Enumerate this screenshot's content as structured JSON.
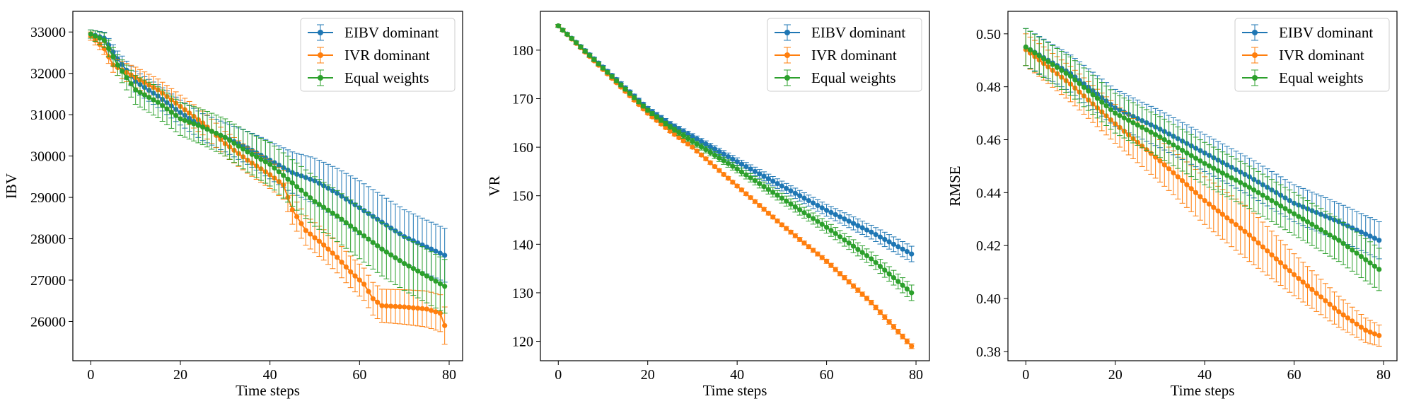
{
  "figure": {
    "background": "#ffffff"
  },
  "colors": {
    "EIBV dominant": "#1f77b4",
    "IVR dominant": "#ff7f0e",
    "Equal weights": "#2ca02c"
  },
  "legend": {
    "position": "top-right",
    "entries": [
      "EIBV dominant",
      "IVR dominant",
      "Equal weights"
    ]
  },
  "chart_data": [
    {
      "type": "line",
      "xlabel": "Time steps",
      "ylabel": "IBV",
      "xlim": [
        -4,
        83
      ],
      "ylim": [
        25050,
        33500
      ],
      "xticks": [
        0,
        20,
        40,
        60,
        80
      ],
      "yticks": [
        26000,
        27000,
        28000,
        29000,
        30000,
        31000,
        32000,
        33000
      ],
      "ytick_labels": [
        "26000",
        "27000",
        "28000",
        "29000",
        "30000",
        "31000",
        "32000",
        "33000"
      ],
      "grid": false,
      "series": [
        {
          "name": "EIBV dominant",
          "keypoints": [
            [
              0,
              32950
            ],
            [
              3,
              32850
            ],
            [
              6,
              32350
            ],
            [
              10,
              31800
            ],
            [
              15,
              31450
            ],
            [
              20,
              31050
            ],
            [
              25,
              30700
            ],
            [
              30,
              30450
            ],
            [
              35,
              30200
            ],
            [
              40,
              29900
            ],
            [
              45,
              29600
            ],
            [
              50,
              29400
            ],
            [
              55,
              29100
            ],
            [
              60,
              28750
            ],
            [
              65,
              28400
            ],
            [
              70,
              28050
            ],
            [
              75,
              27800
            ],
            [
              79,
              27600
            ]
          ],
          "err_keypoints": [
            [
              0,
              100
            ],
            [
              10,
              250
            ],
            [
              30,
              350
            ],
            [
              50,
              550
            ],
            [
              60,
              650
            ],
            [
              79,
              650
            ]
          ]
        },
        {
          "name": "IVR dominant",
          "keypoints": [
            [
              0,
              32900
            ],
            [
              3,
              32600
            ],
            [
              5,
              32200
            ],
            [
              10,
              31900
            ],
            [
              15,
              31600
            ],
            [
              20,
              31200
            ],
            [
              25,
              30800
            ],
            [
              30,
              30300
            ],
            [
              35,
              29900
            ],
            [
              40,
              29550
            ],
            [
              43,
              29300
            ],
            [
              45,
              28700
            ],
            [
              48,
              28200
            ],
            [
              52,
              27850
            ],
            [
              55,
              27550
            ],
            [
              58,
              27200
            ],
            [
              61,
              26900
            ],
            [
              63,
              26550
            ],
            [
              65,
              26380
            ],
            [
              70,
              26350
            ],
            [
              75,
              26300
            ],
            [
              78,
              26200
            ],
            [
              79,
              25900
            ]
          ],
          "err_keypoints": [
            [
              0,
              100
            ],
            [
              10,
              250
            ],
            [
              30,
              300
            ],
            [
              45,
              350
            ],
            [
              65,
              400
            ],
            [
              79,
              450
            ]
          ]
        },
        {
          "name": "Equal weights",
          "keypoints": [
            [
              0,
              32950
            ],
            [
              3,
              32800
            ],
            [
              6,
              32200
            ],
            [
              10,
              31600
            ],
            [
              15,
              31300
            ],
            [
              20,
              30900
            ],
            [
              25,
              30700
            ],
            [
              30,
              30450
            ],
            [
              35,
              30100
            ],
            [
              40,
              29800
            ],
            [
              45,
              29350
            ],
            [
              50,
              28900
            ],
            [
              55,
              28550
            ],
            [
              60,
              28150
            ],
            [
              65,
              27750
            ],
            [
              70,
              27400
            ],
            [
              75,
              27100
            ],
            [
              79,
              26850
            ]
          ],
          "err_keypoints": [
            [
              0,
              100
            ],
            [
              10,
              350
            ],
            [
              30,
              450
            ],
            [
              50,
              600
            ],
            [
              65,
              650
            ],
            [
              79,
              650
            ]
          ]
        }
      ]
    },
    {
      "type": "line",
      "xlabel": "Time steps",
      "ylabel": "VR",
      "xlim": [
        -4,
        83
      ],
      "ylim": [
        116,
        188
      ],
      "xticks": [
        0,
        20,
        40,
        60,
        80
      ],
      "yticks": [
        120,
        130,
        140,
        150,
        160,
        170,
        180
      ],
      "ytick_labels": [
        "120",
        "130",
        "140",
        "150",
        "160",
        "170",
        "180"
      ],
      "grid": false,
      "series": [
        {
          "name": "EIBV dominant",
          "keypoints": [
            [
              0,
              185
            ],
            [
              10,
              176.5
            ],
            [
              20,
              168
            ],
            [
              25,
              164.8
            ],
            [
              30,
              162.2
            ],
            [
              40,
              157
            ],
            [
              50,
              152
            ],
            [
              60,
              147
            ],
            [
              70,
              142.5
            ],
            [
              79,
              138
            ]
          ],
          "err_keypoints": [
            [
              0,
              0.3
            ],
            [
              20,
              0.4
            ],
            [
              79,
              1.6
            ]
          ]
        },
        {
          "name": "IVR dominant",
          "keypoints": [
            [
              0,
              185
            ],
            [
              10,
              176
            ],
            [
              20,
              167
            ],
            [
              25,
              163.3
            ],
            [
              30,
              160
            ],
            [
              40,
              152
            ],
            [
              50,
              144
            ],
            [
              60,
              136.5
            ],
            [
              70,
              128
            ],
            [
              79,
              119
            ]
          ],
          "err_keypoints": [
            [
              0,
              0.2
            ],
            [
              79,
              0.5
            ]
          ]
        },
        {
          "name": "Equal weights",
          "keypoints": [
            [
              0,
              185
            ],
            [
              10,
              176.3
            ],
            [
              20,
              167.6
            ],
            [
              25,
              164.2
            ],
            [
              30,
              161.2
            ],
            [
              40,
              155.5
            ],
            [
              50,
              149.5
            ],
            [
              60,
              143.5
            ],
            [
              70,
              137
            ],
            [
              79,
              130
            ]
          ],
          "err_keypoints": [
            [
              0,
              0.3
            ],
            [
              20,
              0.4
            ],
            [
              79,
              1.6
            ]
          ]
        }
      ]
    },
    {
      "type": "line",
      "xlabel": "Time steps",
      "ylabel": "RMSE",
      "xlim": [
        -4,
        83
      ],
      "ylim": [
        0.3765,
        0.5085
      ],
      "xticks": [
        0,
        20,
        40,
        60,
        80
      ],
      "yticks": [
        0.38,
        0.4,
        0.42,
        0.44,
        0.46,
        0.48,
        0.5
      ],
      "ytick_labels": [
        "0.38",
        "0.40",
        "0.42",
        "0.44",
        "0.46",
        "0.48",
        "0.50"
      ],
      "grid": false,
      "series": [
        {
          "name": "EIBV dominant",
          "keypoints": [
            [
              0,
              0.495
            ],
            [
              10,
              0.485
            ],
            [
              20,
              0.472
            ],
            [
              30,
              0.464
            ],
            [
              40,
              0.455
            ],
            [
              50,
              0.446
            ],
            [
              60,
              0.436
            ],
            [
              70,
              0.429
            ],
            [
              79,
              0.422
            ]
          ],
          "err_keypoints": [
            [
              0,
              0.007
            ],
            [
              40,
              0.007
            ],
            [
              79,
              0.007
            ]
          ]
        },
        {
          "name": "IVR dominant",
          "keypoints": [
            [
              0,
              0.494
            ],
            [
              10,
              0.481
            ],
            [
              20,
              0.466
            ],
            [
              30,
              0.452
            ],
            [
              40,
              0.437
            ],
            [
              50,
              0.424
            ],
            [
              60,
              0.409
            ],
            [
              70,
              0.395
            ],
            [
              76,
              0.388
            ],
            [
              79,
              0.386
            ]
          ],
          "err_keypoints": [
            [
              0,
              0.006
            ],
            [
              30,
              0.008
            ],
            [
              50,
              0.01
            ],
            [
              79,
              0.004
            ]
          ]
        },
        {
          "name": "Equal weights",
          "keypoints": [
            [
              0,
              0.495
            ],
            [
              10,
              0.484
            ],
            [
              20,
              0.47
            ],
            [
              30,
              0.461
            ],
            [
              40,
              0.451
            ],
            [
              50,
              0.442
            ],
            [
              60,
              0.432
            ],
            [
              70,
              0.422
            ],
            [
              79,
              0.411
            ]
          ],
          "err_keypoints": [
            [
              0,
              0.007
            ],
            [
              40,
              0.008
            ],
            [
              79,
              0.008
            ]
          ]
        }
      ]
    }
  ]
}
